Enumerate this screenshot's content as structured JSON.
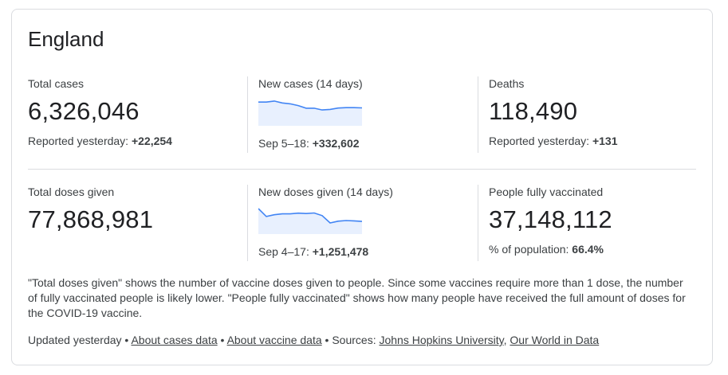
{
  "title": "England",
  "row1": {
    "total_cases": {
      "label": "Total cases",
      "value": "6,326,046",
      "sub_prefix": "Reported yesterday: ",
      "sub_value": "+22,254"
    },
    "new_cases": {
      "label": "New cases (14 days)",
      "sub_prefix": "Sep 5–18: ",
      "sub_value": "+332,602"
    },
    "deaths": {
      "label": "Deaths",
      "value": "118,490",
      "sub_prefix": "Reported yesterday: ",
      "sub_value": "+131"
    }
  },
  "row2": {
    "total_doses": {
      "label": "Total doses given",
      "value": "77,868,981"
    },
    "new_doses": {
      "label": "New doses given (14 days)",
      "sub_prefix": "Sep 4–17: ",
      "sub_value": "+1,251,478"
    },
    "fully_vaccinated": {
      "label": "People fully vaccinated",
      "value": "37,148,112",
      "sub_prefix": "% of population: ",
      "sub_value": "66.4%"
    }
  },
  "note": "\"Total doses given\" shows the number of vaccine doses given to people. Since some vaccines require more than 1 dose, the number of fully vaccinated people is likely lower. \"People fully vaccinated\" shows how many people have received the full amount of doses for the COVID-19 vaccine.",
  "footer": {
    "updated": "Updated yesterday",
    "sep": " • ",
    "about_cases": "About cases data",
    "about_vaccine": "About vaccine data",
    "sources_prefix": "Sources: ",
    "source1": "Johns Hopkins University",
    "comma": ", ",
    "source2": "Our World in Data"
  },
  "colors": {
    "spark_line": "#4285f4",
    "spark_fill": "#e8f0fe"
  },
  "chart_data": [
    {
      "type": "area",
      "name": "new-cases-sparkline",
      "values": [
        0.9,
        0.9,
        0.96,
        0.85,
        0.8,
        0.7,
        0.55,
        0.55,
        0.45,
        0.48,
        0.56,
        0.58,
        0.58,
        0.57
      ]
    },
    {
      "type": "area",
      "name": "new-doses-sparkline",
      "values": [
        1.0,
        0.55,
        0.65,
        0.7,
        0.7,
        0.74,
        0.72,
        0.75,
        0.6,
        0.18,
        0.28,
        0.32,
        0.3,
        0.27
      ]
    }
  ]
}
